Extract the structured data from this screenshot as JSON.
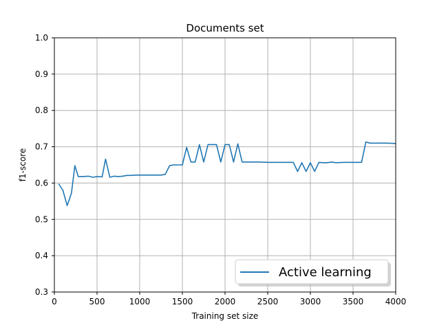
{
  "chart_data": {
    "type": "line",
    "title": "Documents set",
    "xlabel": "Training set size",
    "ylabel": "f1-score",
    "xlim": [
      0,
      4000
    ],
    "ylim": [
      0.3,
      1.0
    ],
    "xticks": [
      0,
      500,
      1000,
      1500,
      2000,
      2500,
      3000,
      3500,
      4000
    ],
    "xtick_labels": [
      "0",
      "500",
      "1000",
      "1500",
      "2000",
      "2500",
      "3000",
      "3500",
      "4000"
    ],
    "yticks": [
      0.3,
      0.4,
      0.5,
      0.6,
      0.7,
      0.8,
      0.9,
      1.0
    ],
    "ytick_labels": [
      "0.3",
      "0.4",
      "0.5",
      "0.6",
      "0.7",
      "0.8",
      "0.9",
      "1.0"
    ],
    "grid": true,
    "legend_position": "lower-right",
    "series": [
      {
        "name": "Active learning",
        "color": "#1f77b4",
        "x": [
          50,
          100,
          150,
          200,
          240,
          280,
          340,
          400,
          450,
          500,
          560,
          600,
          650,
          700,
          750,
          800,
          850,
          900,
          950,
          1000,
          1050,
          1100,
          1150,
          1200,
          1250,
          1300,
          1350,
          1400,
          1450,
          1500,
          1550,
          1600,
          1650,
          1700,
          1750,
          1800,
          1850,
          1900,
          1950,
          2000,
          2050,
          2100,
          2150,
          2200,
          2300,
          2400,
          2500,
          2600,
          2700,
          2750,
          2800,
          2850,
          2900,
          2950,
          3000,
          3050,
          3100,
          3150,
          3200,
          3250,
          3300,
          3400,
          3500,
          3550,
          3600,
          3650,
          3700,
          3800,
          3900,
          4000
        ],
        "y": [
          0.598,
          0.58,
          0.538,
          0.572,
          0.648,
          0.618,
          0.618,
          0.619,
          0.616,
          0.618,
          0.617,
          0.666,
          0.616,
          0.619,
          0.618,
          0.619,
          0.621,
          0.621,
          0.622,
          0.622,
          0.622,
          0.622,
          0.622,
          0.622,
          0.622,
          0.624,
          0.648,
          0.65,
          0.65,
          0.65,
          0.698,
          0.658,
          0.658,
          0.706,
          0.658,
          0.706,
          0.706,
          0.706,
          0.658,
          0.706,
          0.706,
          0.658,
          0.708,
          0.658,
          0.658,
          0.658,
          0.657,
          0.657,
          0.657,
          0.657,
          0.657,
          0.632,
          0.656,
          0.632,
          0.656,
          0.632,
          0.657,
          0.656,
          0.656,
          0.658,
          0.656,
          0.657,
          0.657,
          0.657,
          0.657,
          0.713,
          0.71,
          0.71,
          0.71,
          0.709
        ]
      }
    ]
  }
}
